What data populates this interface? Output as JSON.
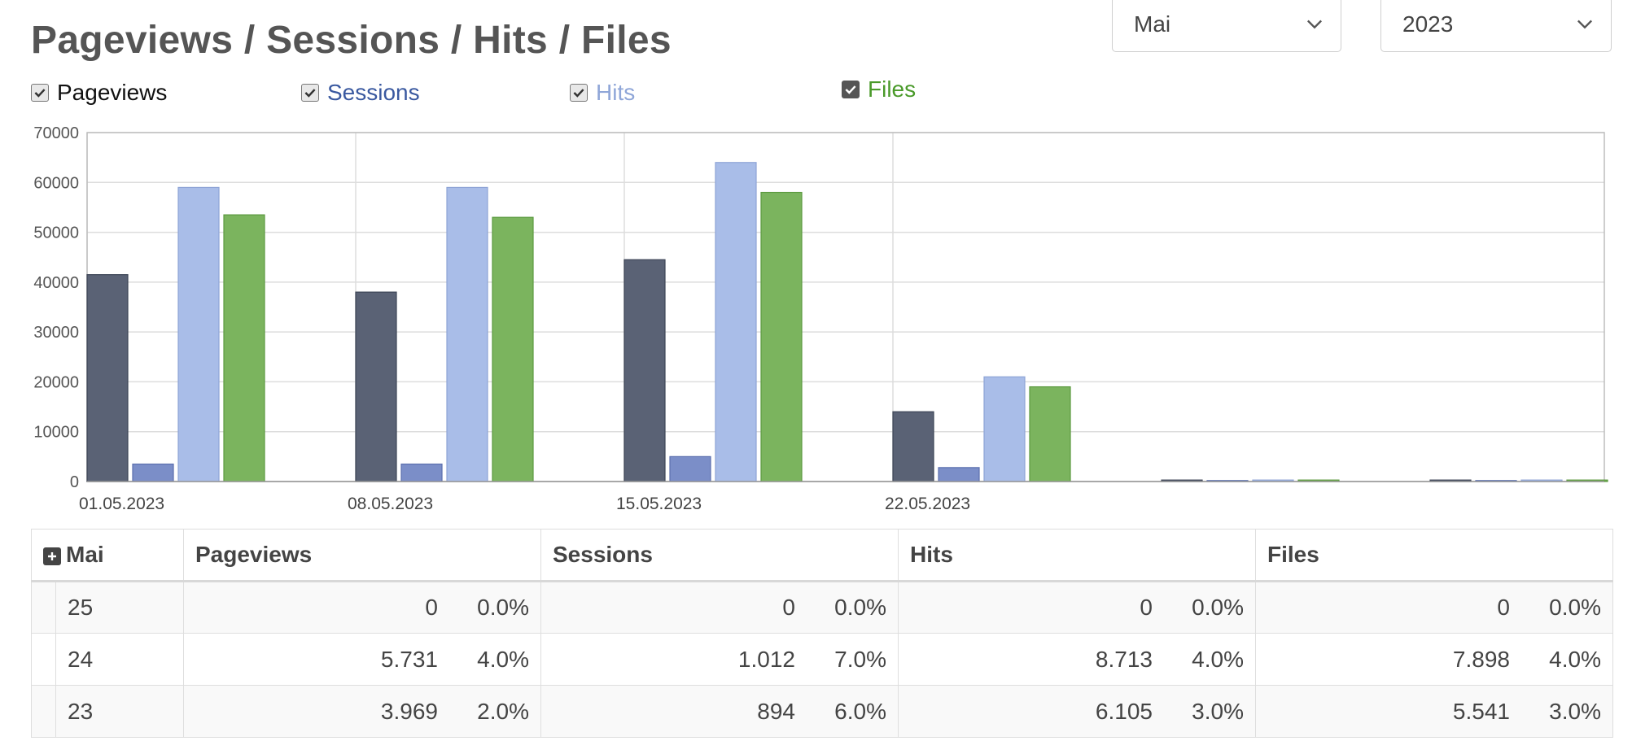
{
  "page_title": "Pageviews / Sessions / Hits / Files",
  "filters": {
    "month": {
      "selected": "Mai",
      "icon": "chevron-down-icon"
    },
    "year": {
      "selected": "2023",
      "icon": "chevron-down-icon"
    }
  },
  "legend": [
    {
      "label": "Pageviews",
      "color": "#111111",
      "checked": true
    },
    {
      "label": "Sessions",
      "color": "#3a59a0",
      "checked": true
    },
    {
      "label": "Hits",
      "color": "#8fa6d8",
      "checked": true
    },
    {
      "label": "Files",
      "color": "#4a9a2a",
      "checked": true
    }
  ],
  "chart_data": {
    "type": "bar",
    "categories": [
      "01.05.2023",
      "08.05.2023",
      "15.05.2023",
      "22.05.2023",
      "",
      ""
    ],
    "series": [
      {
        "name": "Pageviews",
        "color": "#5a6275",
        "values": [
          41500,
          38000,
          44500,
          14000,
          300,
          300
        ]
      },
      {
        "name": "Sessions",
        "color": "#7b8ec8",
        "values": [
          3500,
          3500,
          5000,
          2800,
          200,
          200
        ]
      },
      {
        "name": "Hits",
        "color": "#a9bde8",
        "values": [
          59000,
          59000,
          64000,
          21000,
          300,
          300
        ]
      },
      {
        "name": "Files",
        "color": "#7bb45e",
        "values": [
          53500,
          53000,
          58000,
          19000,
          300,
          300
        ]
      }
    ],
    "yticks": [
      "0",
      "10000",
      "20000",
      "30000",
      "40000",
      "50000",
      "60000",
      "70000"
    ],
    "ylim": [
      0,
      70000
    ],
    "grid": true
  },
  "table": {
    "expand_icon": "plus-square-icon",
    "headers": [
      "Mai",
      "Pageviews",
      "Sessions",
      "Hits",
      "Files"
    ],
    "rows": [
      {
        "day": "25",
        "cells": [
          {
            "v": "0",
            "p": "0.0%"
          },
          {
            "v": "0",
            "p": "0.0%"
          },
          {
            "v": "0",
            "p": "0.0%"
          },
          {
            "v": "0",
            "p": "0.0%"
          }
        ]
      },
      {
        "day": "24",
        "cells": [
          {
            "v": "5.731",
            "p": "4.0%"
          },
          {
            "v": "1.012",
            "p": "7.0%"
          },
          {
            "v": "8.713",
            "p": "4.0%"
          },
          {
            "v": "7.898",
            "p": "4.0%"
          }
        ]
      },
      {
        "day": "23",
        "cells": [
          {
            "v": "3.969",
            "p": "2.0%"
          },
          {
            "v": "894",
            "p": "6.0%"
          },
          {
            "v": "6.105",
            "p": "3.0%"
          },
          {
            "v": "5.541",
            "p": "3.0%"
          }
        ]
      }
    ]
  }
}
